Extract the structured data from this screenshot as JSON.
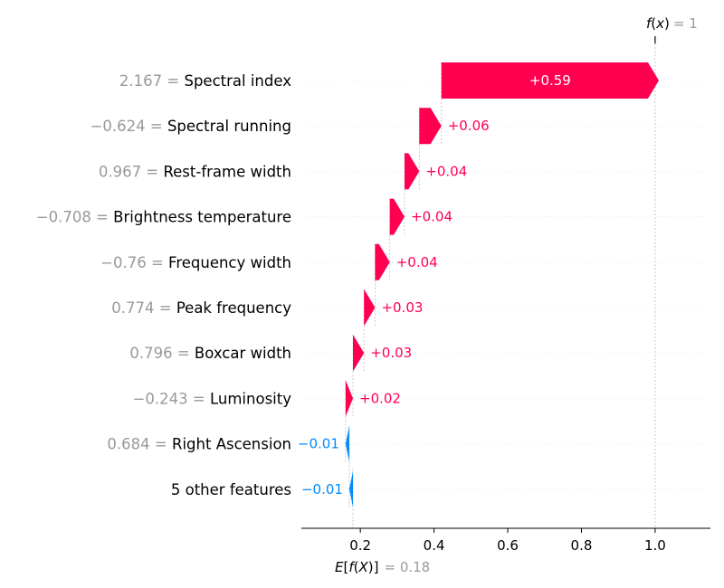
{
  "chart_data": {
    "type": "waterfall",
    "fx_value": "1",
    "ex_value": "0.18",
    "base_value": 0.18,
    "final_value": 1.0,
    "features": [
      {
        "value": "2.167",
        "name": "Spectral index",
        "contribution": 0.59,
        "label": "+0.59"
      },
      {
        "value": "−0.624",
        "name": "Spectral running",
        "contribution": 0.06,
        "label": "+0.06"
      },
      {
        "value": "0.967",
        "name": "Rest-frame width",
        "contribution": 0.04,
        "label": "+0.04"
      },
      {
        "value": "−0.708",
        "name": "Brightness temperature",
        "contribution": 0.04,
        "label": "+0.04"
      },
      {
        "value": "−0.76",
        "name": "Frequency width",
        "contribution": 0.04,
        "label": "+0.04"
      },
      {
        "value": "0.774",
        "name": "Peak frequency",
        "contribution": 0.03,
        "label": "+0.03"
      },
      {
        "value": "0.796",
        "name": "Boxcar width",
        "contribution": 0.03,
        "label": "+0.03"
      },
      {
        "value": "−0.243",
        "name": "Luminosity",
        "contribution": 0.02,
        "label": "+0.02"
      },
      {
        "value": "0.684",
        "name": "Right Ascension",
        "contribution": -0.01,
        "label": "−0.01"
      },
      {
        "value": "",
        "name": "5 other features",
        "contribution": -0.01,
        "label": "−0.01"
      }
    ],
    "x_ticks": [
      {
        "value": 0.2,
        "label": "0.2"
      },
      {
        "value": 0.4,
        "label": "0.4"
      },
      {
        "value": 0.6,
        "label": "0.6"
      },
      {
        "value": 0.8,
        "label": "0.8"
      },
      {
        "value": 1.0,
        "label": "1.0"
      }
    ],
    "xlim": [
      0.04,
      1.15
    ],
    "colors": {
      "positive": "#ff0051",
      "negative": "#008bfb",
      "muted": "#999999",
      "grid": "#e0e0e0"
    }
  }
}
